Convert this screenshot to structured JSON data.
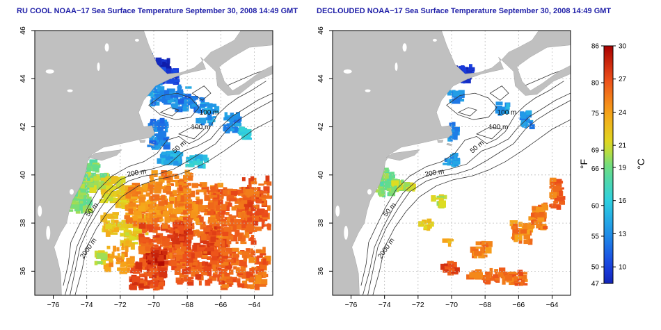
{
  "panels": [
    {
      "title": "RU COOL NOAA−17 Sea Surface Temperature September 30, 2008 14:49 GMT",
      "clouded": false
    },
    {
      "title": "DECLOUDED NOAA−17 Sea Surface Temperature September 30, 2008 14:49 GMT",
      "clouded": true
    }
  ],
  "axes": {
    "lon_ticks": [
      "−76",
      "−74",
      "−72",
      "−70",
      "−68",
      "−66",
      "−64"
    ],
    "lat_ticks": [
      "36",
      "38",
      "40",
      "42",
      "44",
      "46"
    ]
  },
  "contour_labels": [
    "100 m",
    "100 m",
    "50 m",
    "200 m",
    "50 m",
    "2000 m"
  ],
  "colorbar": {
    "fahrenheit_label": "°F",
    "celsius_label": "°C",
    "fahrenheit_ticks": [
      "86",
      "80",
      "75",
      "69",
      "66",
      "60",
      "55",
      "50",
      "47"
    ],
    "celsius_ticks": [
      "30",
      "27",
      "24",
      "21",
      "19",
      "16",
      "13",
      "10"
    ]
  },
  "colors": {
    "land": "#c0c0c0",
    "ocean": "#ffffff",
    "title": "#1f1fa8",
    "contour": "#333333"
  }
}
